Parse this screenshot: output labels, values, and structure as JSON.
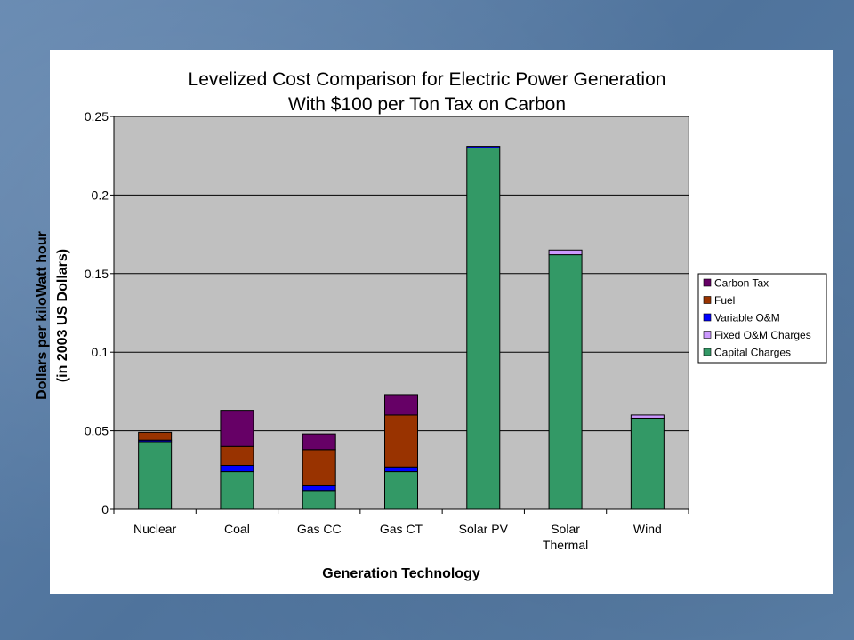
{
  "chart_data": {
    "type": "bar",
    "stacked": true,
    "title": "Levelized Cost Comparison for Electric Power Generation",
    "subtitle": "With $100 per Ton Tax on Carbon",
    "xlabel": "Generation Technology",
    "ylabel": "Dollars per kiloWatt hour",
    "ylabel2": "(in 2003 US Dollars)",
    "ylim": [
      0,
      0.25
    ],
    "yticks": [
      "0",
      "0.05",
      "0.1",
      "0.15",
      "0.2",
      "0.25"
    ],
    "ytick_values": [
      0,
      0.05,
      0.1,
      0.15,
      0.2,
      0.25
    ],
    "grid": true,
    "legend_position": "right",
    "categories": [
      [
        "Nuclear"
      ],
      [
        "Coal"
      ],
      [
        "Gas CC"
      ],
      [
        "Gas CT"
      ],
      [
        "Solar PV"
      ],
      [
        "Solar",
        "Thermal"
      ],
      [
        "Wind"
      ]
    ],
    "series": [
      {
        "name": "Capital Charges",
        "color": "#339966",
        "values": [
          0.043,
          0.024,
          0.012,
          0.024,
          0.23,
          0.162,
          0.058
        ]
      },
      {
        "name": "Fixed O&M Charges",
        "color": "#cc99ff",
        "values": [
          0.0,
          0.0,
          0.0,
          0.0,
          0.0,
          0.003,
          0.002
        ]
      },
      {
        "name": "Variable O&M",
        "color": "#0000ff",
        "values": [
          0.001,
          0.004,
          0.003,
          0.003,
          0.001,
          0.0,
          0.0
        ]
      },
      {
        "name": "Fuel",
        "color": "#993300",
        "values": [
          0.005,
          0.012,
          0.023,
          0.033,
          0.0,
          0.0,
          0.0
        ]
      },
      {
        "name": "Carbon Tax",
        "color": "#660066",
        "values": [
          0.0,
          0.023,
          0.01,
          0.013,
          0.0,
          0.0,
          0.0
        ]
      }
    ],
    "legend_order": [
      "Carbon Tax",
      "Fuel",
      "Variable O&M",
      "Fixed O&M Charges",
      "Capital Charges"
    ],
    "colors": {
      "plot_background": "#c0c0c0",
      "gridline": "#000000",
      "chart_background": "#ffffff"
    }
  }
}
